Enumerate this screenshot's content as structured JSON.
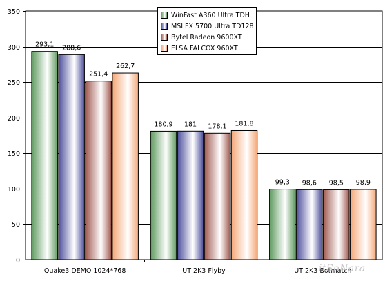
{
  "chart_data": {
    "type": "bar",
    "categories": [
      "Quake3 DEMO 1024*768",
      "UT 2K3 Flyby",
      "UT 2K3 Botmatch"
    ],
    "series": [
      {
        "name": "WinFast A360 Ultra TDH",
        "values": [
          293.1,
          180.9,
          99.3
        ],
        "label_texts": [
          "293,1",
          "180,9",
          "99,3"
        ],
        "color": "#5f9a5f"
      },
      {
        "name": "MSI FX 5700 Ultra TD128",
        "values": [
          288.6,
          181,
          98.6
        ],
        "label_texts": [
          "288,6",
          "181",
          "98,6"
        ],
        "color": "#4d4f9c"
      },
      {
        "name": "Bytel Radeon 9600XT",
        "values": [
          251.4,
          178.1,
          98.5
        ],
        "label_texts": [
          "251,4",
          "178,1",
          "98,5"
        ],
        "color": "#a05a50"
      },
      {
        "name": "ELSA FALCOX 960XT",
        "values": [
          262.7,
          181.8,
          98.9
        ],
        "label_texts": [
          "262,7",
          "181,8",
          "98,9"
        ],
        "color": "#f4a878"
      }
    ],
    "yticks": [
      0,
      50,
      100,
      150,
      200,
      250,
      300,
      350
    ],
    "ylim": [
      0,
      350
    ],
    "grid": true,
    "legend_position": "top-center"
  },
  "watermark": "itSoNara"
}
